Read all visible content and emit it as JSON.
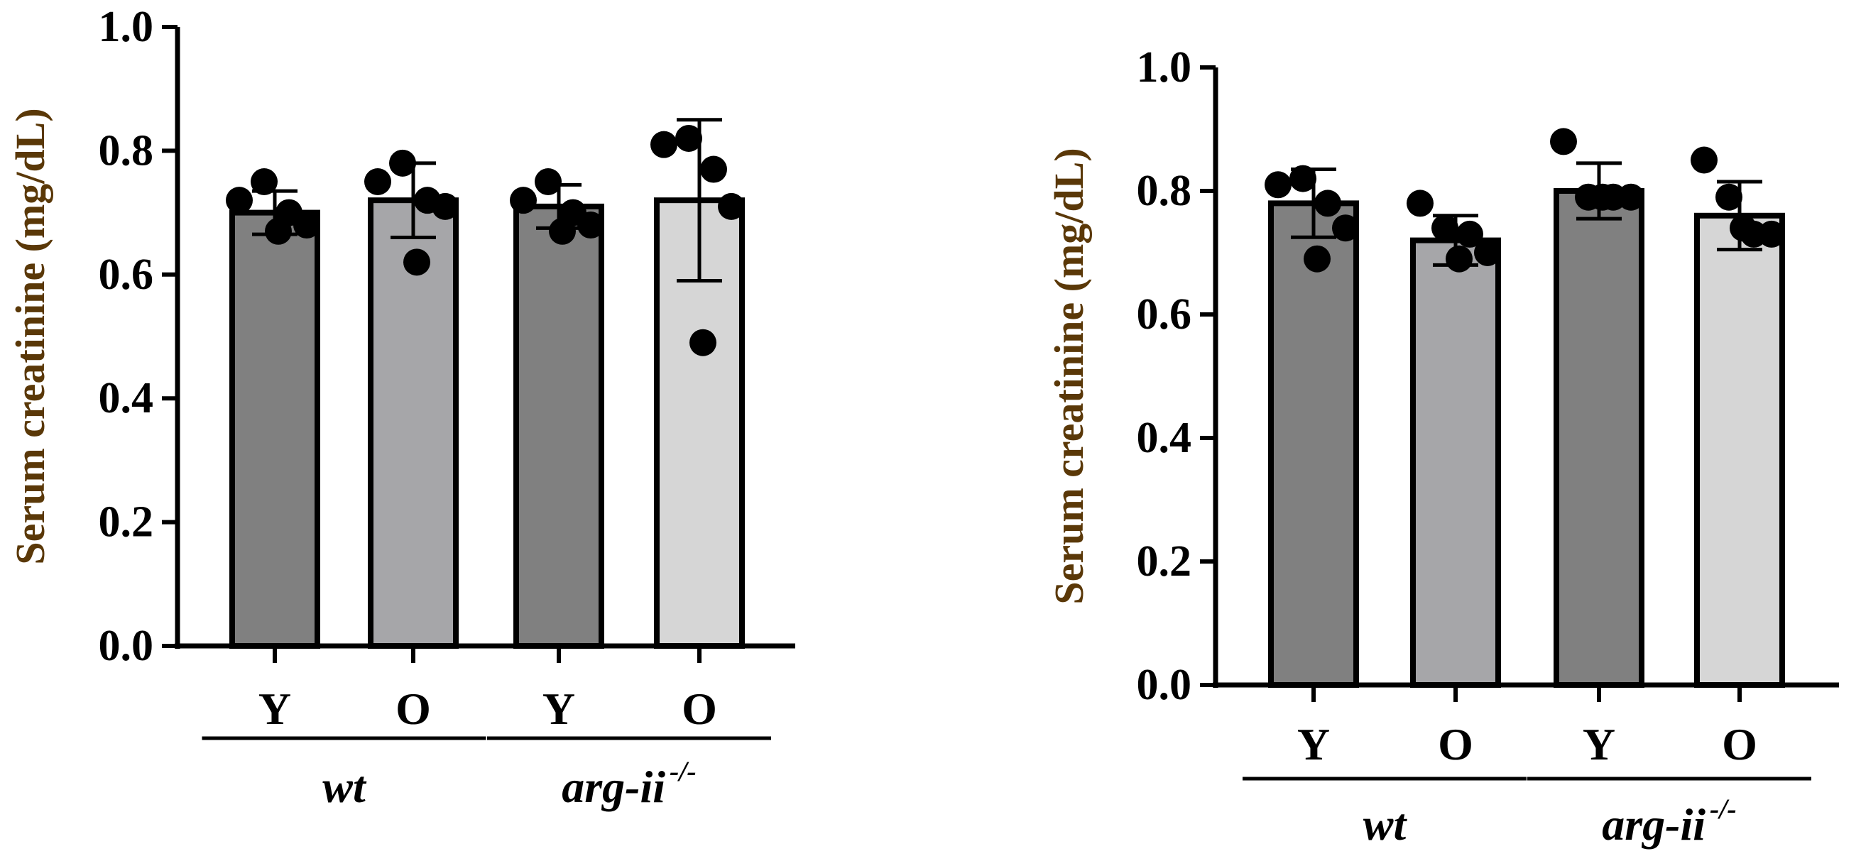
{
  "chart_data": [
    {
      "type": "bar",
      "title": "",
      "xlabel": "",
      "ylabel": "Serum creatinine (mg/dL)",
      "ylim": [
        0,
        1.0
      ],
      "yticks": [
        "0.0",
        "0.2",
        "0.4",
        "0.6",
        "0.8",
        "1.0"
      ],
      "categories": [
        "Y",
        "O",
        "Y",
        "O"
      ],
      "groups": [
        {
          "label": "wt",
          "superscript": "",
          "categories": [
            0,
            1
          ]
        },
        {
          "label": "arg-ii",
          "superscript": "-/-",
          "categories": [
            2,
            3
          ]
        }
      ],
      "values": [
        0.7,
        0.72,
        0.71,
        0.72
      ],
      "error": [
        0.035,
        0.06,
        0.035,
        0.13
      ],
      "points": [
        [
          0.72,
          0.75,
          0.7,
          0.68,
          0.67
        ],
        [
          0.75,
          0.78,
          0.72,
          0.71,
          0.62
        ],
        [
          0.72,
          0.75,
          0.7,
          0.68,
          0.67
        ],
        [
          0.81,
          0.82,
          0.77,
          0.71,
          0.49
        ]
      ],
      "bar_colors": [
        "#808080",
        "#a6a6a9",
        "#808080",
        "#d6d6d6"
      ],
      "grid": false,
      "legend": "none"
    },
    {
      "type": "bar",
      "title": "",
      "xlabel": "",
      "ylabel": "Serum creatinine (mg/dL)",
      "ylim": [
        0,
        1.0
      ],
      "yticks": [
        "0.0",
        "0.2",
        "0.4",
        "0.6",
        "0.8",
        "1.0"
      ],
      "categories": [
        "Y",
        "O",
        "Y",
        "O"
      ],
      "groups": [
        {
          "label": "wt",
          "superscript": "",
          "categories": [
            0,
            1
          ]
        },
        {
          "label": "arg-ii",
          "superscript": "-/-",
          "categories": [
            2,
            3
          ]
        }
      ],
      "values": [
        0.78,
        0.72,
        0.8,
        0.76
      ],
      "error": [
        0.055,
        0.04,
        0.045,
        0.055
      ],
      "points": [
        [
          0.81,
          0.82,
          0.78,
          0.74,
          0.69
        ],
        [
          0.78,
          0.74,
          0.73,
          0.7,
          0.69
        ],
        [
          0.88,
          0.79,
          0.79,
          0.79,
          0.79
        ],
        [
          0.85,
          0.79,
          0.73,
          0.73,
          0.74
        ]
      ],
      "bar_colors": [
        "#808080",
        "#a6a6a9",
        "#808080",
        "#d6d6d6"
      ],
      "grid": false,
      "legend": "none"
    }
  ]
}
